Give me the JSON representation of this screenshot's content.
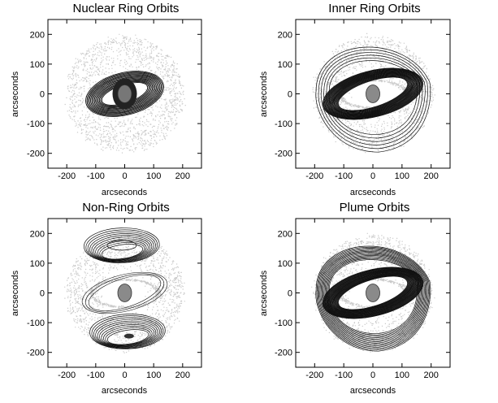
{
  "figure": {
    "panels": [
      {
        "title": "Nuclear Ring Orbits",
        "xlabel": "arcseconds",
        "ylabel": "arcseconds",
        "xticks": [
          "-200",
          "-100",
          "0",
          "100",
          "200"
        ],
        "yticks": [
          "200",
          "100",
          "0",
          "-100",
          "-200"
        ]
      },
      {
        "title": "Inner Ring Orbits",
        "xlabel": "arcseconds",
        "ylabel": "arcseconds",
        "xticks": [
          "-200",
          "-100",
          "0",
          "100",
          "200"
        ],
        "yticks": [
          "200",
          "100",
          "0",
          "-100",
          "-200"
        ]
      },
      {
        "title": "Non-Ring Orbits",
        "xlabel": "arcseconds",
        "ylabel": "arcseconds",
        "xticks": [
          "-200",
          "-100",
          "0",
          "100",
          "200"
        ],
        "yticks": [
          "200",
          "100",
          "0",
          "-100",
          "-200"
        ]
      },
      {
        "title": "Plume Orbits",
        "xlabel": "arcseconds",
        "ylabel": "arcseconds",
        "xticks": [
          "-200",
          "-100",
          "0",
          "100",
          "200"
        ],
        "yticks": [
          "200",
          "100",
          "0",
          "-100",
          "-200"
        ]
      }
    ],
    "colors": {
      "cloud": "#b8b8b8",
      "orbit": "#111111",
      "nucleus": "#8a8a8a"
    }
  }
}
